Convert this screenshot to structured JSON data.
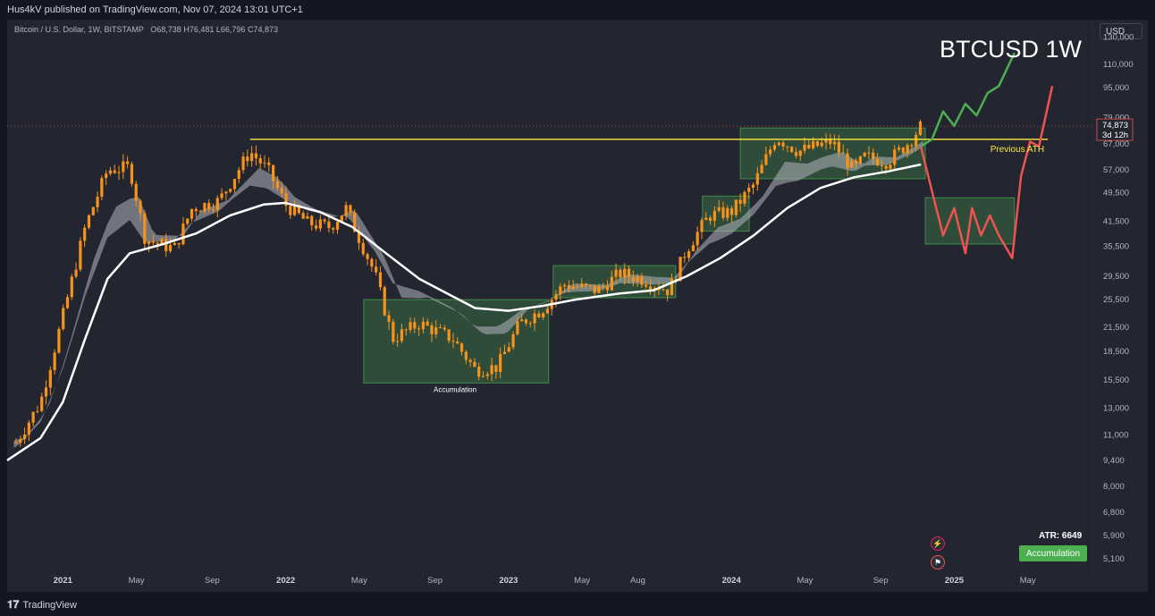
{
  "header": {
    "published": "Hus4kV published on TradingView.com, Nov 07, 2024 13:01 UTC+1"
  },
  "symbol": {
    "name": "Bitcoin / U.S. Dollar, 1W, BITSTAMP",
    "o_label": "O",
    "o": "68,738",
    "h_label": "H",
    "h": "76,481",
    "l_label": "L",
    "l": "66,796",
    "c_label": "C",
    "c": "74,873"
  },
  "currency_button": "USD",
  "footer": {
    "brand": "TradingView"
  },
  "indicators": {
    "atr": "ATR: 6649",
    "badge": "Accumulation"
  },
  "colors": {
    "background": "#232631",
    "candle": "#f7931a",
    "ath_line": "#ffeb3b",
    "bull_path": "#4caf50",
    "bear_path": "#ef5350",
    "box_fill": "rgba(76,175,80,0.28)",
    "ma": "#ffffff"
  },
  "chart_data": {
    "type": "candlestick",
    "title": "BTCUSD 1W",
    "scale": "log",
    "ylim": [
      5000,
      145000
    ],
    "y_ticks": [
      "130,000",
      "110,000",
      "95,000",
      "79,000",
      "67,000",
      "57,000",
      "49,500",
      "41,500",
      "35,500",
      "29,500",
      "25,500",
      "21,500",
      "18,500",
      "15,500",
      "13,000",
      "11,000",
      "9,400",
      "8,000",
      "6,800",
      "5,900",
      "5,100"
    ],
    "x_ticks": [
      "2021",
      "May",
      "Sep",
      "2022",
      "May",
      "Sep",
      "2023",
      "May",
      "Aug",
      "2024",
      "May",
      "Sep",
      "2025",
      "May"
    ],
    "last_price": "74,873",
    "countdown": "3d 12h",
    "price_path": [
      [
        2020.79,
        10500
      ],
      [
        2020.9,
        13500
      ],
      [
        2021.0,
        23000
      ],
      [
        2021.1,
        40000
      ],
      [
        2021.2,
        57000
      ],
      [
        2021.3,
        58000
      ],
      [
        2021.37,
        37000
      ],
      [
        2021.5,
        35000
      ],
      [
        2021.58,
        45000
      ],
      [
        2021.7,
        47000
      ],
      [
        2021.84,
        64000
      ],
      [
        2021.92,
        57000
      ],
      [
        2022.0,
        46000
      ],
      [
        2022.1,
        41000
      ],
      [
        2022.2,
        40000
      ],
      [
        2022.27,
        45000
      ],
      [
        2022.4,
        30000
      ],
      [
        2022.48,
        20000
      ],
      [
        2022.6,
        22000
      ],
      [
        2022.75,
        20000
      ],
      [
        2022.85,
        16500
      ],
      [
        2022.95,
        16800
      ],
      [
        2023.05,
        22000
      ],
      [
        2023.15,
        24000
      ],
      [
        2023.25,
        28000
      ],
      [
        2023.4,
        27000
      ],
      [
        2023.5,
        30000
      ],
      [
        2023.6,
        29000
      ],
      [
        2023.72,
        27000
      ],
      [
        2023.8,
        35000
      ],
      [
        2023.9,
        43000
      ],
      [
        2024.0,
        44000
      ],
      [
        2024.1,
        52000
      ],
      [
        2024.2,
        70000
      ],
      [
        2024.3,
        64000
      ],
      [
        2024.45,
        68000
      ],
      [
        2024.55,
        57000
      ],
      [
        2024.6,
        62000
      ],
      [
        2024.7,
        60000
      ],
      [
        2024.8,
        68000
      ],
      [
        2024.85,
        74873
      ]
    ],
    "ma_slow": [
      [
        2020.75,
        9400
      ],
      [
        2020.9,
        10800
      ],
      [
        2021.0,
        13500
      ],
      [
        2021.1,
        20000
      ],
      [
        2021.2,
        29000
      ],
      [
        2021.3,
        34000
      ],
      [
        2021.45,
        36000
      ],
      [
        2021.6,
        38500
      ],
      [
        2021.75,
        43000
      ],
      [
        2021.9,
        46000
      ],
      [
        2022.0,
        46500
      ],
      [
        2022.15,
        44000
      ],
      [
        2022.3,
        40000
      ],
      [
        2022.45,
        34000
      ],
      [
        2022.6,
        29000
      ],
      [
        2022.75,
        26000
      ],
      [
        2022.85,
        24200
      ],
      [
        2023.0,
        23800
      ],
      [
        2023.15,
        24500
      ],
      [
        2023.3,
        25500
      ],
      [
        2023.5,
        26500
      ],
      [
        2023.65,
        27000
      ],
      [
        2023.8,
        29500
      ],
      [
        2023.95,
        33000
      ],
      [
        2024.1,
        38000
      ],
      [
        2024.25,
        45000
      ],
      [
        2024.4,
        51000
      ],
      [
        2024.55,
        54500
      ],
      [
        2024.7,
        56500
      ],
      [
        2024.85,
        59000
      ]
    ],
    "ath_level": 69000,
    "annotations": [
      "Accumulation",
      "Previous ATH"
    ],
    "accumulation_boxes": [
      {
        "x0": 2022.35,
        "x1": 2023.18,
        "y0": 15200,
        "y1": 25500
      },
      {
        "x0": 2023.2,
        "x1": 2023.75,
        "y0": 25800,
        "y1": 31500
      },
      {
        "x0": 2023.87,
        "x1": 2024.08,
        "y0": 39000,
        "y1": 48500
      },
      {
        "x0": 2024.04,
        "x1": 2024.87,
        "y0": 54000,
        "y1": 74000
      },
      {
        "x0": 2024.87,
        "x1": 2025.27,
        "y0": 36000,
        "y1": 48000
      }
    ],
    "bull_projection": [
      [
        2024.85,
        66000
      ],
      [
        2024.9,
        69000
      ],
      [
        2024.95,
        82000
      ],
      [
        2025.0,
        75000
      ],
      [
        2025.05,
        86000
      ],
      [
        2025.1,
        80000
      ],
      [
        2025.15,
        92000
      ],
      [
        2025.2,
        96000
      ],
      [
        2025.27,
        118000
      ]
    ],
    "bear_projection": [
      [
        2024.85,
        66000
      ],
      [
        2024.9,
        50000
      ],
      [
        2024.95,
        38000
      ],
      [
        2025.0,
        45000
      ],
      [
        2025.05,
        34000
      ],
      [
        2025.08,
        45000
      ],
      [
        2025.12,
        38000
      ],
      [
        2025.16,
        43000
      ],
      [
        2025.2,
        38000
      ],
      [
        2025.26,
        33000
      ],
      [
        2025.3,
        55000
      ],
      [
        2025.34,
        68000
      ],
      [
        2025.38,
        66000
      ],
      [
        2025.44,
        96000
      ]
    ]
  }
}
